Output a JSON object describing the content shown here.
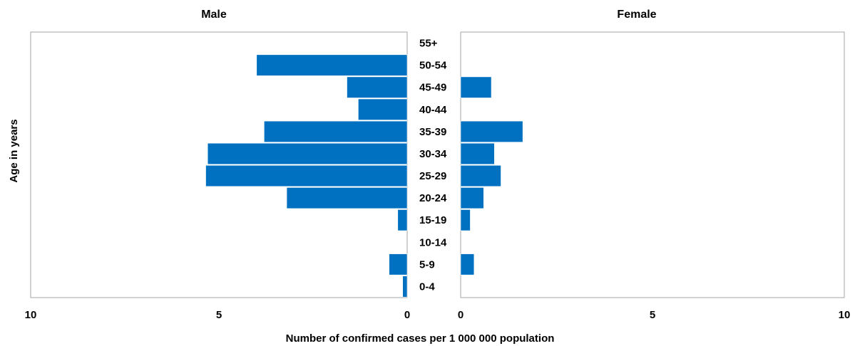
{
  "chart_data": {
    "type": "bar",
    "orientation": "horizontal",
    "layout": "population-pyramid",
    "ylabel": "Age in years",
    "xlabel": "Number of confirmed cases per 1 000 000 population",
    "categories": [
      "0-4",
      "5-9",
      "10-14",
      "15-19",
      "20-24",
      "25-29",
      "30-34",
      "35-39",
      "40-44",
      "45-49",
      "50-54",
      "55+"
    ],
    "bar_color": "#0070C0",
    "panels": [
      {
        "title": "Male",
        "xlim": [
          10,
          0
        ],
        "ticks": [
          "10",
          "5",
          "0"
        ],
        "tick_values": [
          10,
          5,
          0
        ],
        "values": [
          0.12,
          0.48,
          0,
          0.25,
          3.2,
          5.35,
          5.3,
          3.8,
          1.3,
          1.6,
          4.0,
          0
        ]
      },
      {
        "title": "Female",
        "xlim": [
          0,
          10
        ],
        "ticks": [
          "0",
          "5",
          "10"
        ],
        "tick_values": [
          0,
          5,
          10
        ],
        "values": [
          0,
          0.35,
          0,
          0.25,
          0.6,
          1.05,
          0.88,
          1.62,
          0,
          0.8,
          0,
          0
        ]
      }
    ]
  }
}
